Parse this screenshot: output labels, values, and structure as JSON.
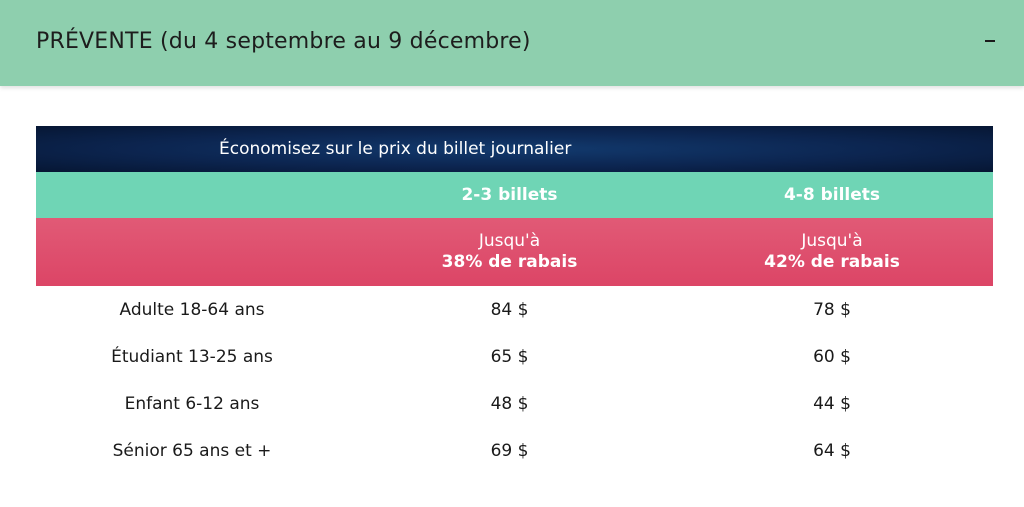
{
  "accordion": {
    "title": "PRÉVENTE (du 4 septembre au 9 décembre)",
    "collapse_icon": "minus-icon"
  },
  "table": {
    "banner": "Économisez sur le prix du billet journalier",
    "columns": [
      {
        "quantity": "2-3 billets",
        "discount_prefix": "Jusqu'à",
        "discount": "38% de rabais"
      },
      {
        "quantity": "4-8 billets",
        "discount_prefix": "Jusqu'à",
        "discount": "42% de rabais"
      }
    ],
    "rows": [
      {
        "category": "Adulte 18-64 ans",
        "prices": [
          "84 $",
          "78 $"
        ]
      },
      {
        "category": "Étudiant 13-25 ans",
        "prices": [
          "65 $",
          "60 $"
        ]
      },
      {
        "category": "Enfant 6-12 ans",
        "prices": [
          "48 $",
          "44 $"
        ]
      },
      {
        "category": "Sénior 65 ans et +",
        "prices": [
          "69 $",
          "64 $"
        ]
      }
    ]
  },
  "colors": {
    "header_bg": "#8ecfae",
    "banner_bg": "#0c2550",
    "quantity_bg": "#6fd5b5",
    "discount_bg": "#df4f6e"
  }
}
